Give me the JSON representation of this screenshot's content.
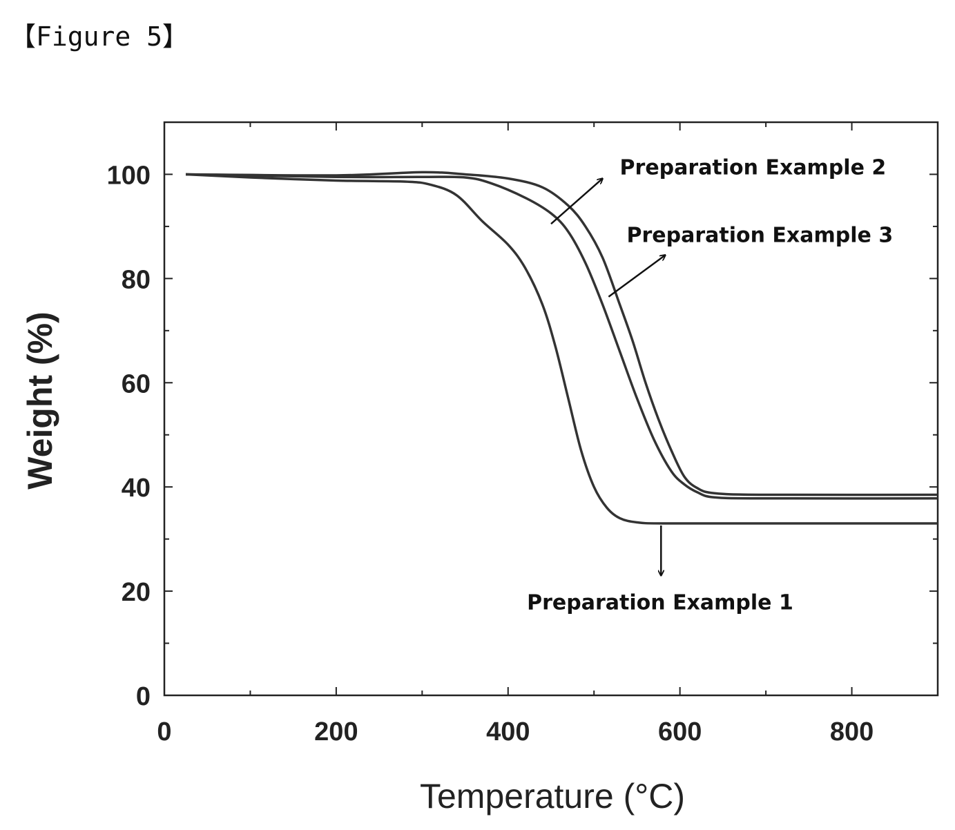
{
  "figure_label": "【Figure 5】",
  "chart_data": {
    "type": "line",
    "xlabel": "Temperature (°C)",
    "ylabel": "Weight (%)",
    "xlim": [
      0,
      900
    ],
    "ylim": [
      0,
      110
    ],
    "x_ticks": [
      0,
      200,
      400,
      600,
      800
    ],
    "y_ticks": [
      0,
      20,
      40,
      60,
      80,
      100
    ],
    "grid": false,
    "series": [
      {
        "name": "Preparation Example 1",
        "points": [
          [
            25,
            100
          ],
          [
            100,
            99.4
          ],
          [
            200,
            98.8
          ],
          [
            280,
            98.6
          ],
          [
            310,
            98.0
          ],
          [
            340,
            96
          ],
          [
            370,
            91
          ],
          [
            400,
            86.5
          ],
          [
            420,
            82
          ],
          [
            440,
            75
          ],
          [
            455,
            67
          ],
          [
            470,
            57
          ],
          [
            485,
            47
          ],
          [
            500,
            40
          ],
          [
            515,
            36
          ],
          [
            530,
            34
          ],
          [
            550,
            33.2
          ],
          [
            580,
            33
          ],
          [
            700,
            33
          ],
          [
            900,
            33
          ]
        ]
      },
      {
        "name": "Preparation Example 2",
        "points": [
          [
            25,
            100
          ],
          [
            200,
            99.8
          ],
          [
            300,
            100.4
          ],
          [
            350,
            100
          ],
          [
            400,
            99.2
          ],
          [
            440,
            97.5
          ],
          [
            470,
            94
          ],
          [
            490,
            90
          ],
          [
            510,
            84
          ],
          [
            530,
            75
          ],
          [
            545,
            68
          ],
          [
            560,
            60
          ],
          [
            575,
            53
          ],
          [
            590,
            47
          ],
          [
            605,
            42
          ],
          [
            620,
            39.8
          ],
          [
            640,
            38.8
          ],
          [
            700,
            38.5
          ],
          [
            900,
            38.5
          ]
        ]
      },
      {
        "name": "Preparation Example 3",
        "points": [
          [
            25,
            100
          ],
          [
            200,
            99.5
          ],
          [
            300,
            99.5
          ],
          [
            350,
            99.4
          ],
          [
            380,
            98.3
          ],
          [
            420,
            95.5
          ],
          [
            450,
            92.5
          ],
          [
            470,
            89
          ],
          [
            490,
            83
          ],
          [
            510,
            75
          ],
          [
            530,
            66
          ],
          [
            550,
            57
          ],
          [
            570,
            49
          ],
          [
            590,
            43
          ],
          [
            605,
            40.5
          ],
          [
            620,
            39
          ],
          [
            640,
            38
          ],
          [
            700,
            37.8
          ],
          [
            900,
            37.8
          ]
        ]
      }
    ],
    "annotations": [
      {
        "text": "Preparation Example 2",
        "arrow_from": [
          450,
          90.5
        ],
        "arrow_to": [
          510,
          99.2
        ],
        "label_at": [
          530,
          100
        ]
      },
      {
        "text": "Preparation Example 3",
        "arrow_from": [
          517,
          76.5
        ],
        "arrow_to": [
          583,
          84.5
        ],
        "label_at": [
          538,
          87
        ]
      },
      {
        "text": "Preparation Example 1",
        "arrow_from": [
          578,
          32.6
        ],
        "arrow_to": [
          578,
          23
        ],
        "label_at": [
          422,
          16.5
        ]
      }
    ]
  }
}
